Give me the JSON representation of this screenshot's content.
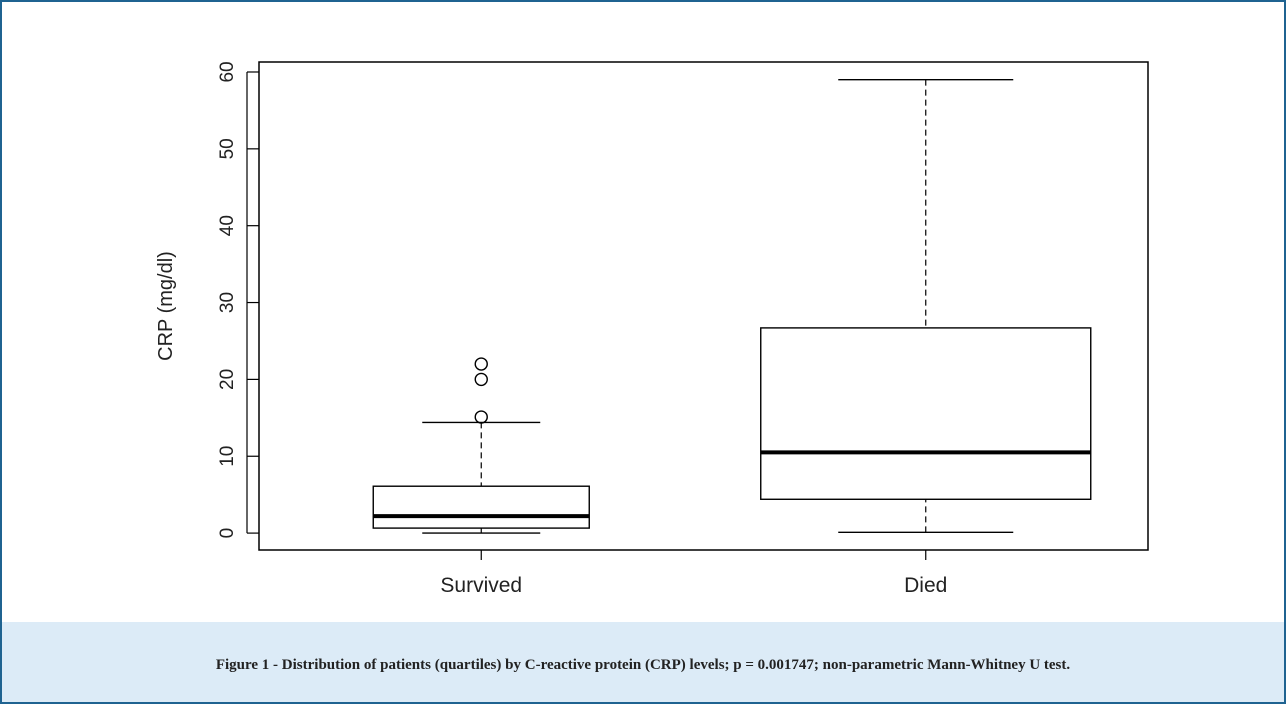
{
  "chart_data": {
    "type": "box",
    "ylabel": "CRP (mg/dl)",
    "categories": [
      "Survived",
      "Died"
    ],
    "whislo": [
      0,
      0.1
    ],
    "q1": [
      0.65,
      4.4
    ],
    "med": [
      2.2,
      10.5
    ],
    "q3": [
      6.1,
      26.7
    ],
    "whishi": [
      14.4,
      59
    ],
    "fliers": [
      [
        15.1,
        20,
        22
      ],
      []
    ],
    "ylim": [
      -2.2,
      61.3
    ],
    "yticks": [
      0,
      10,
      20,
      30,
      40,
      50,
      60
    ],
    "color": "#000000"
  },
  "caption": "Figure 1 - Distribution of patients (quartiles) by C-reactive protein (CRP) levels; p = 0.001747; non-parametric Mann-Whitney U test."
}
